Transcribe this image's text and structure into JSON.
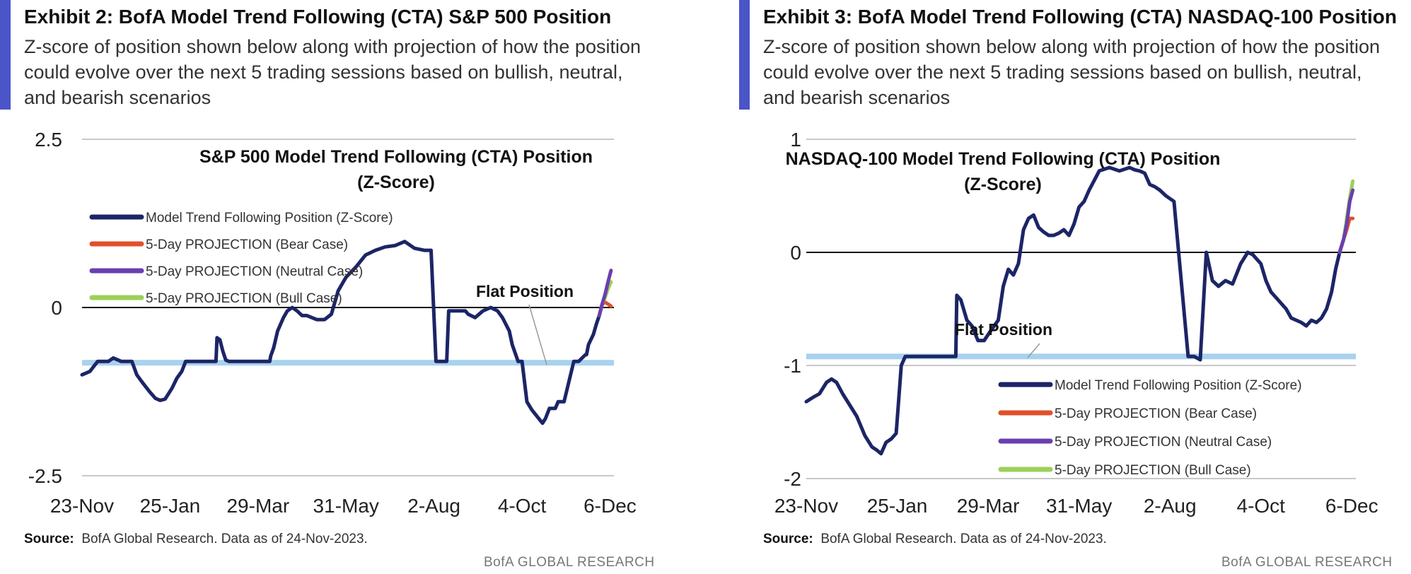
{
  "exhibits": [
    {
      "title": "Exhibit 2: BofA Model Trend Following (CTA) S&P 500 Position",
      "subtitle": "Z-score of position shown below along with projection of how the position could evolve over the next 5 trading sessions based on bullish, neutral, and bearish scenarios",
      "source_label": "Source:",
      "source_text": "BofA Global Research. Data as of 24-Nov-2023.",
      "footer": "BofA GLOBAL RESEARCH"
    },
    {
      "title": "Exhibit 3: BofA Model Trend Following (CTA) NASDAQ-100 Position",
      "subtitle": "Z-score of position shown below along with projection of how the position could evolve over the next 5 trading sessions based on bullish, neutral, and bearish scenarios",
      "source_label": "Source:",
      "source_text": "BofA Global Research. Data as of 24-Nov-2023.",
      "footer": "BofA GLOBAL RESEARCH"
    }
  ],
  "colors": {
    "position": "#1c2566",
    "bear": "#e0502a",
    "neutral": "#6a3fb0",
    "bull": "#9ccf5a",
    "flat": "#a8d2ee",
    "zero": "#111111",
    "grid": "#c8c8c8"
  },
  "chart_data": [
    {
      "type": "line",
      "title": "S&P 500 Model Trend Following (CTA) Position",
      "title_line2": "(Z-Score)",
      "ylim": [
        -2.5,
        2.5
      ],
      "yticks": [
        "2.5",
        "0",
        "-2.5"
      ],
      "ytick_values": [
        2.5,
        0,
        -2.5
      ],
      "xlim": [
        0,
        54.4
      ],
      "xticks": [
        "23-Nov",
        "25-Jan",
        "29-Mar",
        "31-May",
        "2-Aug",
        "4-Oct",
        "6-Dec"
      ],
      "xtick_values": [
        0,
        9,
        18,
        27,
        36,
        45,
        54
      ],
      "flat_position": -0.82,
      "flat_label": "Flat Position",
      "legend_position": "top-left",
      "series": [
        {
          "name": "Model Trend Following Position (Z-Score)",
          "x": [
            0,
            0.8,
            1.6,
            2,
            2.7,
            3.2,
            4,
            4.8,
            5.1,
            5.6,
            6.1,
            6.9,
            7.5,
            8,
            8.5,
            9.2,
            9.7,
            10.2,
            10.6,
            11.2,
            11.6,
            11.8,
            13.7,
            13.8,
            14.1,
            14.4,
            14.7,
            15,
            15.4,
            16.5,
            18,
            19.2,
            19.3,
            19.6,
            20,
            20.6,
            21,
            21.5,
            22,
            22.5,
            23,
            24,
            24.8,
            25.5,
            26.2,
            27,
            28,
            29,
            30,
            31,
            32,
            33,
            34,
            35,
            35.7,
            36.2,
            36.6,
            37.3,
            37.5,
            39.2,
            39.5,
            40.2,
            41,
            41.8,
            42.5,
            43,
            43.7,
            44,
            44.6,
            45,
            45.5,
            46,
            47.1,
            47.4,
            47.8,
            48.4,
            48.7,
            49.3,
            50.3,
            50.8,
            51.5,
            51.6,
            51.8,
            52.3,
            52.6,
            52.9,
            53.2
          ],
          "y": [
            -1,
            -0.95,
            -0.8,
            -0.8,
            -0.8,
            -0.75,
            -0.8,
            -0.8,
            -0.8,
            -1,
            -1.1,
            -1.25,
            -1.35,
            -1.38,
            -1.36,
            -1.2,
            -1.05,
            -0.95,
            -0.8,
            -0.8,
            -0.8,
            -0.8,
            -0.8,
            -0.45,
            -0.48,
            -0.65,
            -0.78,
            -0.8,
            -0.8,
            -0.8,
            -0.8,
            -0.8,
            -0.72,
            -0.6,
            -0.35,
            -0.15,
            -0.05,
            0,
            -0.05,
            -0.12,
            -0.12,
            -0.18,
            -0.18,
            -0.1,
            0.25,
            0.45,
            0.6,
            0.78,
            0.85,
            0.9,
            0.92,
            0.98,
            0.88,
            0.85,
            0.85,
            -0.8,
            -0.8,
            -0.8,
            -0.05,
            -0.05,
            -0.1,
            -0.15,
            -0.05,
            0,
            -0.05,
            -0.15,
            -0.35,
            -0.55,
            -0.8,
            -0.8,
            -1.4,
            -1.52,
            -1.72,
            -1.65,
            -1.5,
            -1.5,
            -1.4,
            -1.4,
            -0.8,
            -0.8,
            -0.7,
            -0.7,
            -0.55,
            -0.4,
            -0.25,
            -0.12,
            0.05
          ]
        },
        {
          "name": "5-Day PROJECTION (Bear Case)",
          "x": [
            52.9,
            53.2,
            53.5,
            53.8,
            54.1
          ],
          "y": [
            -0.12,
            0.05,
            0.08,
            0.05,
            0.02
          ]
        },
        {
          "name": "5-Day PROJECTION (Neutral Case)",
          "x": [
            52.9,
            53.2,
            53.5,
            53.8,
            54.1
          ],
          "y": [
            -0.12,
            0.05,
            0.2,
            0.38,
            0.55
          ]
        },
        {
          "name": "5-Day PROJECTION (Bull Case)",
          "x": [
            52.9,
            53.2,
            53.5,
            53.8,
            54.1
          ],
          "y": [
            -0.12,
            0.05,
            0.15,
            0.28,
            0.38
          ]
        }
      ]
    },
    {
      "type": "line",
      "title": "NASDAQ-100 Model Trend Following (CTA) Position",
      "title_line2": "(Z-Score)",
      "ylim": [
        -2,
        1
      ],
      "yticks": [
        "1",
        "0",
        "-1",
        "-2"
      ],
      "ytick_values": [
        1,
        0,
        -1,
        -2
      ],
      "xlim": [
        0,
        54.4
      ],
      "xticks": [
        "23-Nov",
        "25-Jan",
        "29-Mar",
        "31-May",
        "2-Aug",
        "4-Oct",
        "6-Dec"
      ],
      "xtick_values": [
        0,
        9,
        18,
        27,
        36,
        45,
        54
      ],
      "flat_position": -0.92,
      "flat_label": "Flat Position",
      "legend_position": "bottom-right",
      "series": [
        {
          "name": "Model Trend Following Position (Z-Score)",
          "x": [
            0,
            0.7,
            1.3,
            2,
            2.5,
            3,
            3.6,
            4.3,
            5,
            5.8,
            6.5,
            7,
            7.4,
            7.9,
            8.4,
            8.9,
            9.4,
            9.8,
            10.2,
            10.4,
            14.8,
            14.9,
            15.3,
            15.9,
            16.4,
            17,
            17.6,
            18.2,
            19,
            19.5,
            20,
            20.5,
            21,
            21.5,
            22,
            22.5,
            23,
            23.5,
            24,
            24.5,
            25,
            25.5,
            26,
            26.5,
            27,
            27.5,
            28,
            29,
            30,
            31,
            32,
            32.5,
            33,
            33.5,
            34,
            34.5,
            35,
            35.6,
            36.4,
            37.8,
            38,
            38.4,
            39,
            39.6,
            40.2,
            40.8,
            41.5,
            42.2,
            43,
            43.7,
            44.2,
            45,
            45.5,
            46,
            46.5,
            47,
            47.5,
            48,
            48.5,
            49,
            49.5,
            50,
            50.5,
            51,
            51.5,
            52,
            52.4,
            52.8,
            53.2
          ],
          "y": [
            -1.32,
            -1.28,
            -1.25,
            -1.15,
            -1.12,
            -1.15,
            -1.25,
            -1.35,
            -1.45,
            -1.62,
            -1.72,
            -1.75,
            -1.78,
            -1.68,
            -1.65,
            -1.6,
            -1,
            -0.92,
            -0.92,
            -0.92,
            -0.92,
            -0.38,
            -0.42,
            -0.6,
            -0.65,
            -0.78,
            -0.78,
            -0.7,
            -0.6,
            -0.3,
            -0.15,
            -0.2,
            -0.1,
            0.2,
            0.3,
            0.33,
            0.22,
            0.18,
            0.15,
            0.15,
            0.17,
            0.2,
            0.15,
            0.25,
            0.4,
            0.45,
            0.55,
            0.72,
            0.75,
            0.72,
            0.75,
            0.73,
            0.72,
            0.7,
            0.6,
            0.58,
            0.55,
            0.5,
            0.45,
            -0.92,
            -0.92,
            -0.92,
            -0.95,
            0,
            -0.25,
            -0.3,
            -0.25,
            -0.28,
            -0.1,
            0,
            -0.02,
            -0.1,
            -0.25,
            -0.35,
            -0.4,
            -0.45,
            -0.5,
            -0.58,
            -0.6,
            -0.62,
            -0.65,
            -0.6,
            -0.62,
            -0.58,
            -0.5,
            -0.35,
            -0.15,
            0,
            0.12
          ],
          "note": "line meets projection fan at about x=52.8"
        },
        {
          "name": "5-Day PROJECTION (Bear Case)",
          "x": [
            52.8,
            53.2,
            53.5,
            53.8,
            54.1
          ],
          "y": [
            0,
            0.12,
            0.2,
            0.3,
            0.3
          ]
        },
        {
          "name": "5-Day PROJECTION (Neutral Case)",
          "x": [
            52.8,
            53.2,
            53.5,
            53.8,
            54.1
          ],
          "y": [
            0,
            0.12,
            0.25,
            0.45,
            0.55
          ]
        },
        {
          "name": "5-Day PROJECTION (Bull Case)",
          "x": [
            52.8,
            53.2,
            53.5,
            53.8,
            54.1
          ],
          "y": [
            0,
            0.12,
            0.3,
            0.48,
            0.63
          ]
        }
      ]
    }
  ]
}
